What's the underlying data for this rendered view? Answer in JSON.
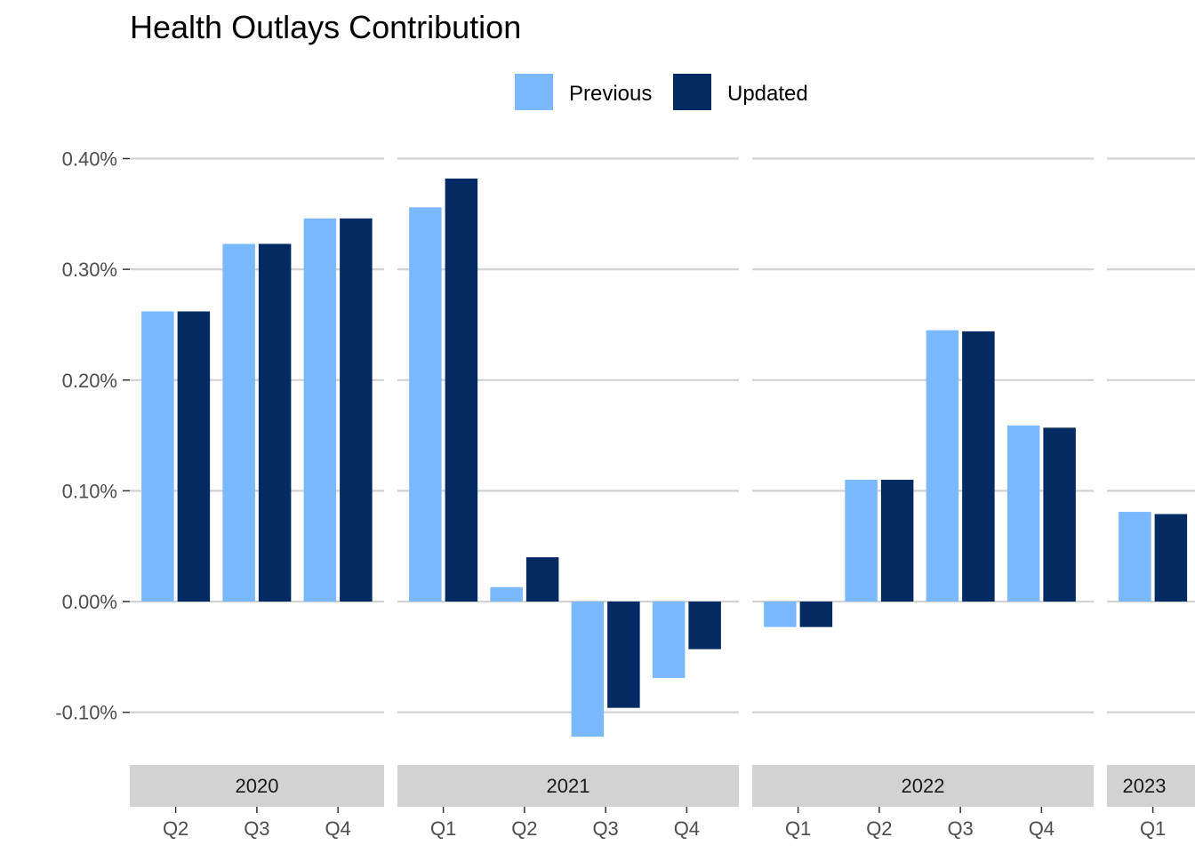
{
  "chart_data": {
    "type": "bar",
    "title": "Health Outlays Contribution",
    "xlabel": "",
    "ylabel": "",
    "ylim": [
      -0.14,
      0.4
    ],
    "y_ticks": [
      -0.1,
      0.0,
      0.1,
      0.2,
      0.3,
      0.4
    ],
    "y_tick_labels": [
      "-0.10%",
      "0.00%",
      "0.10%",
      "0.20%",
      "0.30%",
      "0.40%"
    ],
    "grid": true,
    "legend_position": "top",
    "series": [
      {
        "name": "Previous",
        "color": "#7ab8ff"
      },
      {
        "name": "Updated",
        "color": "#042a63"
      }
    ],
    "facets": [
      {
        "label": "2020",
        "categories": [
          "Q2",
          "Q3",
          "Q4"
        ],
        "values": {
          "Previous": [
            0.262,
            0.323,
            0.346
          ],
          "Updated": [
            0.262,
            0.323,
            0.346
          ]
        }
      },
      {
        "label": "2021",
        "categories": [
          "Q1",
          "Q2",
          "Q3",
          "Q4"
        ],
        "values": {
          "Previous": [
            0.356,
            0.013,
            -0.122,
            -0.069
          ],
          "Updated": [
            0.382,
            0.04,
            -0.096,
            -0.043
          ]
        }
      },
      {
        "label": "2022",
        "categories": [
          "Q1",
          "Q2",
          "Q3",
          "Q4"
        ],
        "values": {
          "Previous": [
            -0.023,
            0.11,
            0.245,
            0.159
          ],
          "Updated": [
            -0.023,
            0.11,
            0.244,
            0.157
          ]
        }
      },
      {
        "label": "2023",
        "categories": [
          "Q1"
        ],
        "values": {
          "Previous": [
            0.081
          ],
          "Updated": [
            0.079
          ]
        }
      }
    ],
    "style": {
      "grid_color": "#d2d2d2",
      "strip_fill": "#d2d2d2",
      "axis_text_color": "#4d4d4d"
    }
  }
}
